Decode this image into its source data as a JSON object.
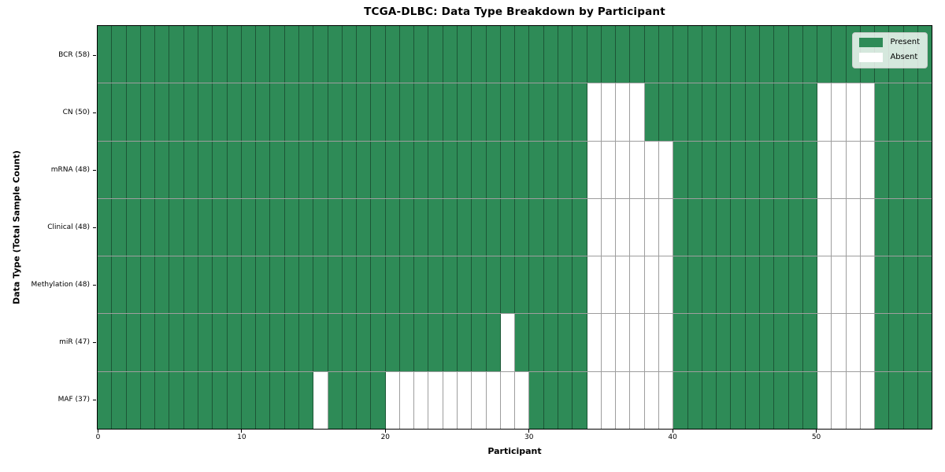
{
  "chart_data": {
    "type": "heatmap",
    "title": "TCGA-DLBC: Data Type Breakdown by Participant",
    "xlabel": "Participant",
    "ylabel": "Data Type (Total Sample Count)",
    "n_participants": 58,
    "x_range": [
      0,
      58
    ],
    "x_ticks": [
      0,
      10,
      20,
      30,
      40,
      50
    ],
    "grid": true,
    "legend_position": "upper right",
    "colors": {
      "present": "#2E8B57",
      "absent": "#FFFFFF"
    },
    "legend": [
      {
        "label": "Present",
        "color": "#2E8B57"
      },
      {
        "label": "Absent",
        "color": "#FFFFFF"
      }
    ],
    "rows": [
      {
        "label": "BCR (58)",
        "total_samples": 58,
        "absent_participants": []
      },
      {
        "label": "CN (50)",
        "total_samples": 50,
        "absent_participants": [
          34,
          35,
          36,
          37,
          50,
          51,
          52,
          53
        ]
      },
      {
        "label": "mRNA (48)",
        "total_samples": 48,
        "absent_participants": [
          34,
          35,
          36,
          37,
          38,
          39,
          50,
          51,
          52,
          53
        ]
      },
      {
        "label": "Clinical (48)",
        "total_samples": 48,
        "absent_participants": [
          34,
          35,
          36,
          37,
          38,
          39,
          50,
          51,
          52,
          53
        ]
      },
      {
        "label": "Methylation (48)",
        "total_samples": 48,
        "absent_participants": [
          34,
          35,
          36,
          37,
          38,
          39,
          50,
          51,
          52,
          53
        ]
      },
      {
        "label": "miR (47)",
        "total_samples": 47,
        "absent_participants": [
          28,
          34,
          35,
          36,
          37,
          38,
          39,
          50,
          51,
          52,
          53
        ]
      },
      {
        "label": "MAF (37)",
        "total_samples": 37,
        "absent_participants": [
          15,
          20,
          21,
          22,
          23,
          24,
          25,
          26,
          27,
          28,
          29,
          34,
          35,
          36,
          37,
          38,
          39,
          50,
          51,
          52,
          53
        ]
      }
    ]
  }
}
